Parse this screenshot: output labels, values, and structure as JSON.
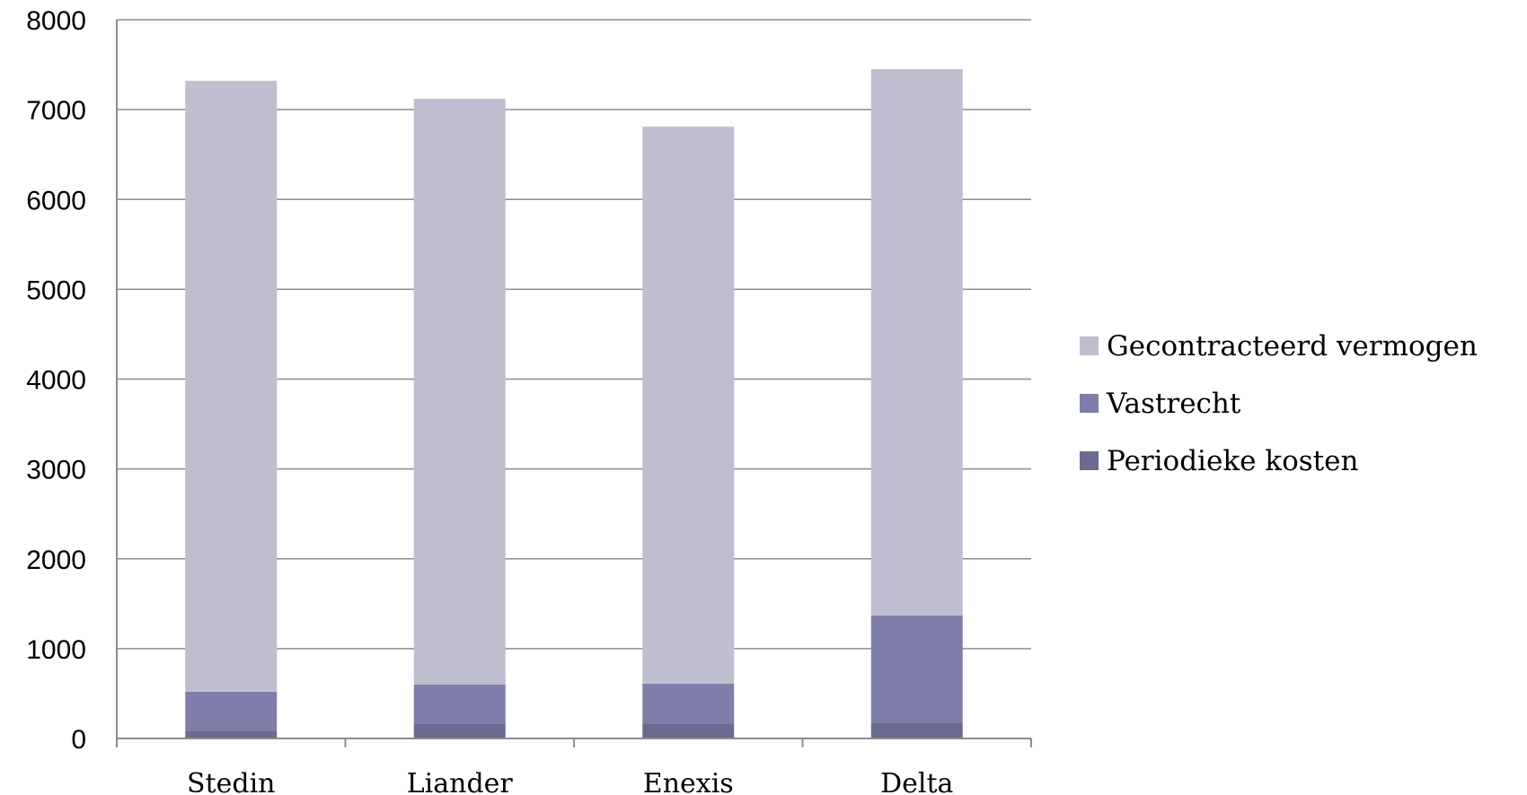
{
  "chart_data": {
    "type": "bar",
    "stacked": true,
    "categories": [
      "Stedin",
      "Liander",
      "Enexis",
      "Delta"
    ],
    "series": [
      {
        "name": "Periodieke kosten",
        "values": [
          80,
          160,
          160,
          170
        ],
        "color": "#6b6a8f"
      },
      {
        "name": "Vastrecht",
        "values": [
          440,
          440,
          450,
          1200
        ],
        "color": "#7f7eab"
      },
      {
        "name": "Gecontracteerd vermogen",
        "values": [
          6800,
          6520,
          6200,
          6080
        ],
        "color": "#bfbed1"
      }
    ],
    "ylim": [
      0,
      8000
    ],
    "yticks": [
      0,
      1000,
      2000,
      3000,
      4000,
      5000,
      6000,
      7000,
      8000
    ],
    "grid": true,
    "legend_position": "right",
    "legend_order": [
      "Gecontracteerd vermogen",
      "Vastrecht",
      "Periodieke kosten"
    ]
  }
}
